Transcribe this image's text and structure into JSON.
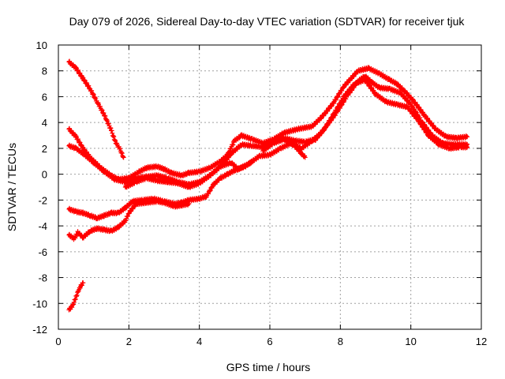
{
  "chart_data": {
    "type": "scatter",
    "title": "Day 079 of 2026, Sidereal Day-to-day VTEC variation (SDTVAR) for receiver tjuk",
    "xlabel": "GPS time / hours",
    "ylabel": "SDTVAR / TECUs",
    "xlim": [
      0,
      12
    ],
    "ylim": [
      -12,
      10
    ],
    "xticks": [
      0,
      2,
      4,
      6,
      8,
      10,
      12
    ],
    "yticks": [
      -12,
      -10,
      -8,
      -6,
      -4,
      -2,
      0,
      2,
      4,
      6,
      8,
      10
    ],
    "grid": true,
    "marker_color": "#ff0000",
    "series": [
      {
        "name": "track-1",
        "points": [
          [
            0.3,
            8.7
          ],
          [
            0.5,
            8.2
          ],
          [
            0.7,
            7.4
          ],
          [
            0.9,
            6.6
          ],
          [
            1.1,
            5.6
          ],
          [
            1.3,
            4.6
          ],
          [
            1.5,
            3.4
          ],
          [
            1.6,
            2.6
          ],
          [
            1.75,
            1.9
          ],
          [
            1.85,
            1.3
          ]
        ]
      },
      {
        "name": "track-2",
        "points": [
          [
            0.3,
            3.5
          ],
          [
            0.5,
            2.9
          ],
          [
            0.7,
            2.0
          ],
          [
            0.9,
            1.3
          ],
          [
            1.2,
            0.5
          ],
          [
            1.5,
            -0.1
          ],
          [
            1.7,
            -0.4
          ],
          [
            2.0,
            -0.3
          ],
          [
            2.3,
            0.2
          ],
          [
            2.5,
            0.5
          ],
          [
            2.8,
            0.6
          ],
          [
            3.0,
            0.4
          ],
          [
            3.2,
            0.1
          ],
          [
            3.5,
            -0.1
          ],
          [
            3.7,
            0.1
          ],
          [
            4.0,
            0.2
          ],
          [
            4.3,
            0.5
          ],
          [
            4.6,
            1.0
          ],
          [
            4.8,
            1.5
          ],
          [
            5.0,
            2.6
          ],
          [
            5.2,
            3.0
          ],
          [
            5.5,
            2.7
          ],
          [
            5.8,
            2.4
          ],
          [
            6.1,
            2.7
          ],
          [
            6.4,
            3.2
          ],
          [
            6.8,
            3.5
          ],
          [
            7.2,
            3.7
          ],
          [
            7.5,
            4.5
          ],
          [
            7.8,
            5.5
          ],
          [
            8.1,
            6.8
          ],
          [
            8.5,
            8.0
          ],
          [
            8.8,
            8.2
          ],
          [
            9.1,
            7.8
          ],
          [
            9.4,
            7.3
          ],
          [
            9.6,
            7.0
          ],
          [
            9.8,
            6.5
          ],
          [
            10.1,
            5.6
          ],
          [
            10.4,
            4.5
          ],
          [
            10.7,
            3.5
          ],
          [
            11.0,
            2.9
          ],
          [
            11.3,
            2.8
          ],
          [
            11.6,
            2.9
          ]
        ]
      },
      {
        "name": "track-3",
        "points": [
          [
            0.3,
            2.2
          ],
          [
            0.5,
            2.0
          ],
          [
            0.7,
            1.6
          ],
          [
            1.0,
            0.9
          ],
          [
            1.3,
            0.2
          ],
          [
            1.6,
            -0.4
          ],
          [
            1.9,
            -0.6
          ],
          [
            2.2,
            -0.3
          ],
          [
            2.5,
            -0.2
          ],
          [
            2.8,
            -0.1
          ],
          [
            3.1,
            -0.3
          ],
          [
            3.4,
            -0.6
          ],
          [
            3.7,
            -0.8
          ],
          [
            4.0,
            -0.6
          ],
          [
            4.3,
            -0.1
          ],
          [
            4.6,
            0.6
          ],
          [
            4.9,
            1.6
          ],
          [
            5.2,
            2.3
          ],
          [
            5.5,
            2.2
          ],
          [
            5.8,
            2.1
          ],
          [
            6.1,
            2.6
          ],
          [
            6.4,
            2.8
          ],
          [
            6.7,
            2.6
          ],
          [
            7.0,
            2.5
          ],
          [
            7.3,
            2.7
          ],
          [
            7.6,
            3.7
          ],
          [
            7.9,
            4.8
          ],
          [
            8.2,
            6.1
          ],
          [
            8.5,
            7.2
          ],
          [
            8.7,
            7.6
          ],
          [
            8.9,
            7.1
          ],
          [
            9.1,
            6.7
          ],
          [
            9.4,
            6.6
          ],
          [
            9.7,
            6.3
          ],
          [
            10.0,
            5.4
          ],
          [
            10.3,
            4.1
          ],
          [
            10.6,
            3.0
          ],
          [
            10.9,
            2.4
          ],
          [
            11.2,
            2.3
          ],
          [
            11.6,
            2.3
          ]
        ]
      },
      {
        "name": "track-4",
        "points": [
          [
            1.9,
            -1.0
          ],
          [
            2.2,
            -0.6
          ],
          [
            2.5,
            -0.3
          ],
          [
            2.8,
            -0.5
          ],
          [
            3.1,
            -0.6
          ],
          [
            3.4,
            -0.7
          ],
          [
            3.7,
            -1.0
          ],
          [
            4.0,
            -0.7
          ],
          [
            4.3,
            -0.1
          ],
          [
            4.6,
            0.6
          ],
          [
            4.9,
            0.9
          ],
          [
            5.1,
            0.4
          ],
          [
            5.4,
            0.8
          ],
          [
            5.7,
            1.4
          ],
          [
            6.0,
            1.5
          ],
          [
            6.3,
            2.0
          ],
          [
            6.6,
            2.4
          ],
          [
            6.9,
            2.0
          ],
          [
            7.2,
            2.6
          ],
          [
            7.5,
            3.3
          ],
          [
            7.8,
            4.6
          ],
          [
            8.1,
            6.0
          ],
          [
            8.4,
            7.0
          ],
          [
            8.7,
            7.3
          ],
          [
            9.0,
            6.2
          ],
          [
            9.3,
            5.6
          ],
          [
            9.6,
            5.4
          ],
          [
            9.9,
            5.2
          ],
          [
            10.2,
            4.2
          ],
          [
            10.5,
            3.0
          ],
          [
            10.8,
            2.3
          ],
          [
            11.1,
            2.0
          ],
          [
            11.4,
            2.1
          ],
          [
            11.6,
            2.1
          ]
        ]
      },
      {
        "name": "track-5",
        "points": [
          [
            0.3,
            -2.7
          ],
          [
            0.5,
            -2.9
          ],
          [
            0.7,
            -3.0
          ],
          [
            0.9,
            -3.2
          ],
          [
            1.1,
            -3.4
          ],
          [
            1.3,
            -3.2
          ],
          [
            1.5,
            -3.0
          ],
          [
            1.7,
            -3.0
          ],
          [
            1.9,
            -2.6
          ],
          [
            2.1,
            -2.1
          ],
          [
            2.4,
            -2.0
          ],
          [
            2.7,
            -1.9
          ],
          [
            3.0,
            -2.1
          ],
          [
            3.3,
            -2.3
          ],
          [
            3.5,
            -2.2
          ],
          [
            3.7,
            -2.0
          ],
          [
            4.0,
            -1.9
          ],
          [
            4.2,
            -1.7
          ],
          [
            4.4,
            -0.8
          ],
          [
            4.6,
            -0.3
          ],
          [
            4.8,
            0.0
          ],
          [
            5.0,
            0.3
          ],
          [
            5.3,
            0.6
          ],
          [
            5.5,
            1.0
          ]
        ]
      },
      {
        "name": "track-6",
        "points": [
          [
            0.3,
            -4.7
          ],
          [
            0.45,
            -5.0
          ],
          [
            0.55,
            -4.5
          ],
          [
            0.7,
            -4.9
          ],
          [
            0.9,
            -4.4
          ],
          [
            1.1,
            -4.2
          ],
          [
            1.3,
            -4.3
          ],
          [
            1.5,
            -4.4
          ],
          [
            1.7,
            -4.1
          ],
          [
            1.9,
            -3.6
          ],
          [
            2.0,
            -3.0
          ],
          [
            2.2,
            -2.3
          ],
          [
            2.5,
            -2.2
          ],
          [
            2.8,
            -2.1
          ],
          [
            3.0,
            -2.2
          ],
          [
            3.3,
            -2.5
          ],
          [
            3.5,
            -2.4
          ],
          [
            3.7,
            -2.3
          ]
        ]
      },
      {
        "name": "track-7",
        "points": [
          [
            0.3,
            -10.5
          ],
          [
            0.4,
            -10.2
          ],
          [
            0.5,
            -9.5
          ],
          [
            0.6,
            -8.8
          ],
          [
            0.7,
            -8.4
          ]
        ]
      },
      {
        "name": "track-8",
        "points": [
          [
            5.8,
            1.8
          ],
          [
            6.1,
            2.4
          ],
          [
            6.4,
            2.7
          ],
          [
            6.7,
            2.2
          ],
          [
            6.9,
            1.6
          ],
          [
            7.0,
            1.3
          ]
        ]
      }
    ]
  }
}
